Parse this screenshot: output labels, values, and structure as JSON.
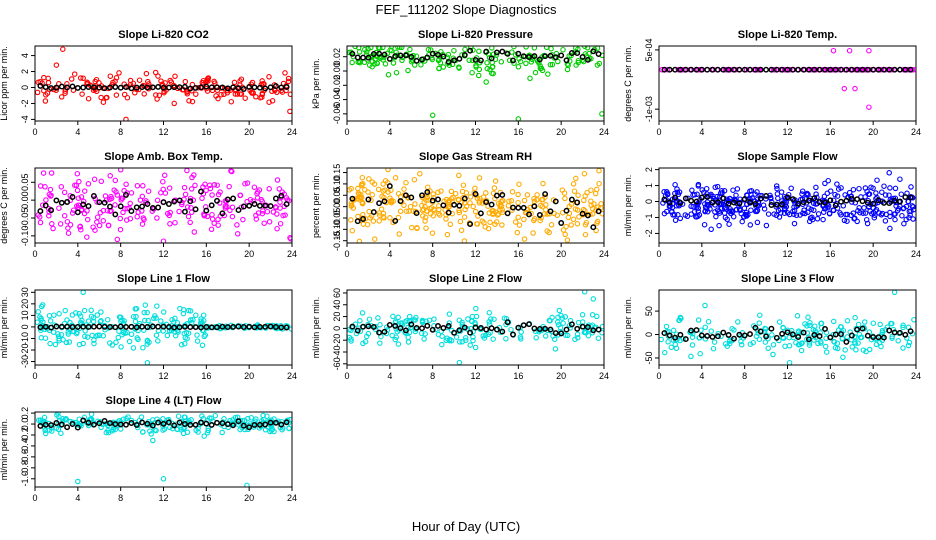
{
  "figure": {
    "title": "FEF_111202  Slope Diagnostics",
    "xlabel": "Hour of Day (UTC)"
  },
  "chart_data": [
    {
      "type": "scatter",
      "title": "Slope Li-820 CO2",
      "ylabel": "Licor ppm per min.",
      "xlim": [
        0,
        24
      ],
      "x_ticks": [
        0,
        4,
        8,
        12,
        16,
        20,
        24
      ],
      "ylim": [
        -4.2,
        5.2
      ],
      "y_ticks": [
        -4,
        -2,
        0,
        2,
        4
      ],
      "y_tick_labels": [
        "-4",
        "-2",
        "0",
        "2",
        "4"
      ],
      "colors": {
        "cloud": "#ff0000",
        "mean": "#000000"
      },
      "cloud": {
        "center": 0,
        "spread": 0.8,
        "n": 180,
        "outliers": [
          [
            2.6,
            4.8
          ],
          [
            8.5,
            -4.0
          ],
          [
            23.8,
            -3.0
          ],
          [
            13.0,
            -2.0
          ],
          [
            2.0,
            2.8
          ]
        ]
      },
      "mean": {
        "center": 0,
        "spread": 0.08
      }
    },
    {
      "type": "scatter",
      "title": "Slope Li-820 Pressure",
      "ylabel": "kPa per min.",
      "xlim": [
        0,
        24
      ],
      "x_ticks": [
        0,
        4,
        8,
        12,
        16,
        20,
        24
      ],
      "ylim": [
        -0.07,
        0.035
      ],
      "y_ticks": [
        -0.06,
        -0.04,
        -0.02,
        0.0,
        0.02
      ],
      "y_tick_labels": [
        "-0.06",
        "-0.04",
        "-0.02",
        "0.00",
        "0.02"
      ],
      "colors": {
        "cloud": "#00cc00",
        "mean": "#000000"
      },
      "cloud": {
        "center": 0.02,
        "spread": 0.012,
        "n": 220,
        "outliers": [
          [
            8.0,
            -0.062
          ],
          [
            16.0,
            -0.067
          ],
          [
            23.8,
            -0.06
          ]
        ]
      },
      "mean": {
        "center": 0.02,
        "spread": 0.004
      }
    },
    {
      "type": "scatter",
      "title": "Slope Li-820 Temp.",
      "ylabel": "degrees C per min.",
      "xlim": [
        0,
        24
      ],
      "x_ticks": [
        0,
        4,
        8,
        12,
        16,
        20,
        24
      ],
      "ylim": [
        -0.0013,
        0.0006
      ],
      "y_ticks": [
        -0.001,
        0.0005
      ],
      "y_tick_labels": [
        "-1e-03",
        "5e-04"
      ],
      "colors": {
        "cloud": "#ff00ff",
        "mean": "#000000"
      },
      "cloud": {
        "center": 0,
        "spread": 0,
        "n": 110,
        "outliers": [
          [
            16.3,
            0.00048
          ],
          [
            17.8,
            0.00048
          ],
          [
            19.6,
            0.00048
          ],
          [
            17.3,
            -0.00048
          ],
          [
            18.3,
            -0.00048
          ],
          [
            19.6,
            -0.00095
          ]
        ]
      },
      "mean": {
        "center": 0,
        "spread": 0
      }
    },
    {
      "type": "scatter",
      "title": "Slope Amb. Box Temp.",
      "ylabel": "degrees C per min.",
      "xlim": [
        0,
        24
      ],
      "x_ticks": [
        0,
        4,
        8,
        12,
        16,
        20,
        24
      ],
      "ylim": [
        -0.12,
        0.09
      ],
      "y_ticks": [
        -0.1,
        -0.05,
        0.0,
        0.05
      ],
      "y_tick_labels": [
        "-0.10",
        "-0.05",
        "0.00",
        "0.05"
      ],
      "colors": {
        "cloud": "#ff00ff",
        "mean": "#000000"
      },
      "cloud": {
        "center": -0.01,
        "spread": 0.04,
        "n": 240,
        "outliers": [
          [
            8.0,
            0.085
          ],
          [
            12.0,
            -0.115
          ]
        ]
      },
      "mean": {
        "center": -0.01,
        "spread": 0.015
      }
    },
    {
      "type": "scatter",
      "title": "Slope Gas Stream RH",
      "ylabel": "percent per min.",
      "xlim": [
        0,
        24
      ],
      "x_ticks": [
        0,
        4,
        8,
        12,
        16,
        20,
        24
      ],
      "ylim": [
        -0.16,
        0.17
      ],
      "y_ticks": [
        -0.15,
        -0.1,
        -0.05,
        0.0,
        0.05,
        0.1,
        0.15
      ],
      "y_tick_labels": [
        "-0.15",
        "-0.10",
        "-0.05",
        "0.00",
        "0.05",
        "0.10",
        "0.15"
      ],
      "colors": {
        "cloud": "#ffaa00",
        "mean": "#000000"
      },
      "cloud": {
        "center": 0,
        "spread": 0.06,
        "n": 320,
        "outliers": []
      },
      "mean": {
        "center": 0,
        "spread": 0.04
      }
    },
    {
      "type": "scatter",
      "title": "Slope Sample Flow",
      "ylabel": "ml/min per min.",
      "xlim": [
        0,
        24
      ],
      "x_ticks": [
        0,
        4,
        8,
        12,
        16,
        20,
        24
      ],
      "ylim": [
        -2.6,
        2.1
      ],
      "y_ticks": [
        -2,
        -1,
        0,
        1,
        2
      ],
      "y_tick_labels": [
        "-2",
        "-1",
        "0",
        "1",
        "2"
      ],
      "colors": {
        "cloud": "#0000ff",
        "mean": "#000000"
      },
      "cloud": {
        "center": 0.1,
        "spread": 0.5,
        "n": 260,
        "outliers": [
          [
            21.5,
            1.8
          ],
          [
            22.5,
            1.4
          ]
        ]
      },
      "cloud2": {
        "center": -0.7,
        "spread": 0.4,
        "n": 150
      },
      "mean": {
        "center": 0.05,
        "spread": 0.15
      }
    },
    {
      "type": "scatter",
      "title": "Slope Line 1 Flow",
      "ylabel": "ml/min per min.",
      "xlim": [
        0,
        24
      ],
      "x_ticks": [
        0,
        4,
        8,
        12,
        16,
        20,
        24
      ],
      "ylim": [
        -33,
        32
      ],
      "y_ticks": [
        -30,
        -20,
        -10,
        0,
        10,
        20,
        30
      ],
      "y_tick_labels": [
        "-30",
        "-20",
        "-10",
        "0",
        "10",
        "20",
        "30"
      ],
      "colors": {
        "cloud": "#00dddd",
        "mean": "#000000"
      },
      "cloud": {
        "center": 0,
        "spread": 9,
        "n": 200,
        "xmax": 16,
        "outliers": [
          [
            4.5,
            30
          ],
          [
            10.5,
            -31
          ]
        ]
      },
      "cloud_tail": {
        "center": 0,
        "spread": 1,
        "n": 50,
        "xmin": 16,
        "xmax": 24
      },
      "mean": {
        "center": 0,
        "spread": 0.3
      }
    },
    {
      "type": "scatter",
      "title": "Slope Line 2 Flow",
      "ylabel": "ml/min per min.",
      "xlim": [
        0,
        24
      ],
      "x_ticks": [
        0,
        4,
        8,
        12,
        16,
        20,
        24
      ],
      "ylim": [
        -62,
        65
      ],
      "y_ticks": [
        -60,
        -40,
        -20,
        0,
        20,
        40,
        60
      ],
      "y_tick_labels": [
        "-60",
        "-40",
        "-20",
        "0",
        "20",
        "40",
        "60"
      ],
      "colors": {
        "cloud": "#00dddd",
        "mean": "#000000"
      },
      "cloud": {
        "center": 0,
        "spread": 14,
        "n": 200,
        "outliers": [
          [
            10.5,
            -58
          ],
          [
            22.2,
            62
          ],
          [
            23.0,
            50
          ]
        ]
      },
      "mean": {
        "center": 0,
        "spread": 5
      }
    },
    {
      "type": "scatter",
      "title": "Slope Line 3 Flow",
      "ylabel": "ml/min per min.",
      "xlim": [
        0,
        24
      ],
      "x_ticks": [
        0,
        4,
        8,
        12,
        16,
        20,
        24
      ],
      "ylim": [
        -65,
        95
      ],
      "y_ticks": [
        -50,
        0,
        50
      ],
      "y_tick_labels": [
        "-50",
        "0",
        "50"
      ],
      "colors": {
        "cloud": "#00dddd",
        "mean": "#000000"
      },
      "cloud": {
        "center": 0,
        "spread": 20,
        "n": 200,
        "outliers": [
          [
            4.3,
            62
          ],
          [
            22.0,
            90
          ],
          [
            12.2,
            -60
          ]
        ]
      },
      "mean": {
        "center": 0,
        "spread": 6
      }
    },
    {
      "type": "scatter",
      "title": "Slope Line 4 (LT) Flow",
      "ylabel": "ml/min per min.",
      "xlim": [
        0,
        24
      ],
      "x_ticks": [
        0,
        4,
        8,
        12,
        16,
        20,
        24
      ],
      "ylim": [
        -1.15,
        0.22
      ],
      "y_ticks": [
        -1.0,
        -0.8,
        -0.6,
        -0.4,
        -0.2,
        0.0,
        0.2
      ],
      "y_tick_labels": [
        "-1.0",
        "-0.8",
        "-0.6",
        "-0.4",
        "-0.2",
        "0.0",
        "0.2"
      ],
      "colors": {
        "cloud": "#00dddd",
        "mean": "#000000"
      },
      "cloud": {
        "center": 0.0,
        "spread": 0.08,
        "n": 220,
        "outliers": [
          [
            4.0,
            -1.05
          ],
          [
            12.0,
            -1.0
          ],
          [
            19.8,
            -1.12
          ],
          [
            11.0,
            -0.3
          ]
        ]
      },
      "mean": {
        "center": 0.0,
        "spread": 0.03
      }
    }
  ]
}
